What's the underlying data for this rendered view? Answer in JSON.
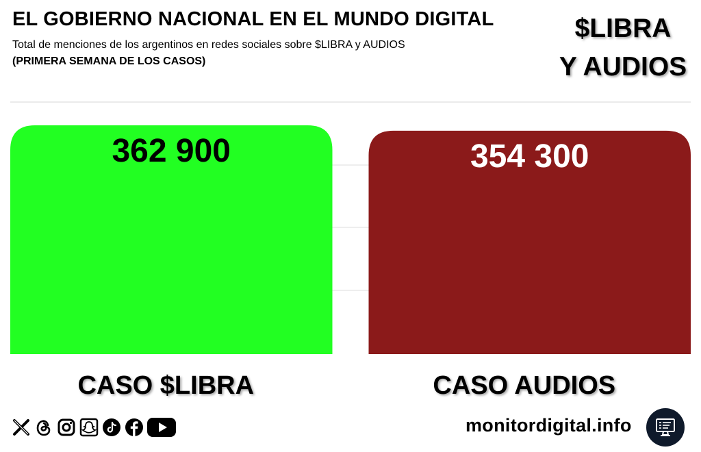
{
  "header": {
    "title": "EL GOBIERNO NACIONAL EN EL MUNDO DIGITAL",
    "subtitle": "Total de menciones de los argentinos en redes sociales sobre $LIBRA y AUDIOS",
    "subtitle2": "(PRIMERA SEMANA DE LOS CASOS)",
    "badge_line1": "$LIBRA",
    "badge_line2": "Y AUDIOS"
  },
  "chart_data": {
    "type": "bar",
    "categories": [
      "CASO $LIBRA",
      "CASO AUDIOS"
    ],
    "values": [
      362900,
      354300
    ],
    "value_labels": [
      "362 900",
      "354 300"
    ],
    "colors": [
      "#22ff22",
      "#8b1a1a"
    ],
    "value_label_colors": [
      "#000000",
      "#ffffff"
    ],
    "ylim": [
      0,
      362900
    ],
    "grid": true
  },
  "footer": {
    "site": "monitordigital.info",
    "social_icons": [
      "x-icon",
      "threads-icon",
      "instagram-icon",
      "snapchat-icon",
      "tiktok-icon",
      "facebook-icon",
      "youtube-icon"
    ],
    "monitor_icon": "monitor-icon"
  }
}
